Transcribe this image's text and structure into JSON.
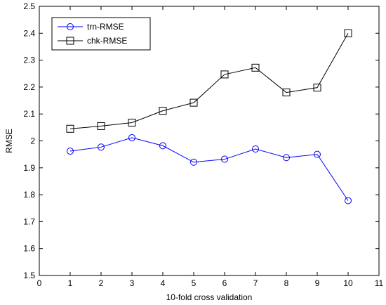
{
  "chart_data": {
    "type": "line",
    "title": "",
    "xlabel": "10-fold cross validation",
    "ylabel": "RMSE",
    "xlim": [
      0,
      11
    ],
    "ylim": [
      1.5,
      2.5
    ],
    "x_ticks": [
      0,
      1,
      2,
      3,
      4,
      5,
      6,
      7,
      8,
      9,
      10,
      11
    ],
    "y_ticks": [
      1.5,
      1.6,
      1.7,
      1.8,
      1.9,
      2.0,
      2.1,
      2.2,
      2.3,
      2.4,
      2.5
    ],
    "y_tick_labels": [
      "1.5",
      "1.6",
      "1.7",
      "1.8",
      "1.9",
      "2",
      "2.1",
      "2.2",
      "2.3",
      "2.4",
      "2.5"
    ],
    "grid": false,
    "legend_position": "top-left",
    "x": [
      1,
      2,
      3,
      4,
      5,
      6,
      7,
      8,
      9,
      10
    ],
    "series": [
      {
        "name": "trn-RMSE",
        "color": "#0000ff",
        "marker": "circle",
        "values": [
          1.962,
          1.977,
          2.012,
          1.982,
          1.921,
          1.932,
          1.97,
          1.938,
          1.95,
          1.778
        ]
      },
      {
        "name": "chk-RMSE",
        "color": "#000000",
        "marker": "square",
        "values": [
          2.045,
          2.055,
          2.068,
          2.112,
          2.142,
          2.247,
          2.272,
          2.18,
          2.198,
          2.4
        ]
      }
    ]
  }
}
